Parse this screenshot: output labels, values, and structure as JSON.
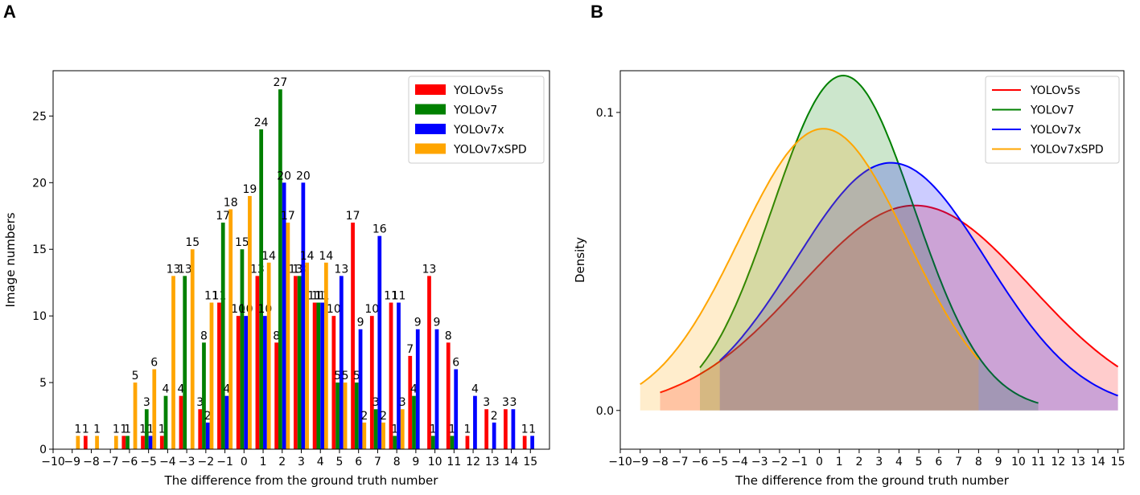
{
  "panel_labels": [
    "A",
    "B"
  ],
  "chart_data": [
    {
      "type": "bar",
      "title": "",
      "xlabel": "The difference from the ground truth number",
      "ylabel": "Image numbers",
      "xlim": [
        -10,
        16
      ],
      "ylim": [
        0,
        28.4
      ],
      "xticks": [
        -10,
        -9,
        -8,
        -7,
        -6,
        -5,
        -4,
        -3,
        -2,
        -1,
        0,
        1,
        2,
        3,
        4,
        5,
        6,
        7,
        8,
        9,
        10,
        11,
        12,
        13,
        14,
        15
      ],
      "yticks": [
        0,
        5,
        10,
        15,
        20,
        25
      ],
      "legend_position": "upper right",
      "series": [
        {
          "name": "YOLOv5s",
          "color": "#ff0000",
          "x": [
            -8,
            -6,
            -5,
            -4,
            -3,
            -2,
            -1,
            0,
            1,
            2,
            3,
            4,
            5,
            6,
            7,
            8,
            9,
            10,
            11,
            12,
            13,
            14,
            15
          ],
          "values": [
            1,
            1,
            1,
            1,
            4,
            3,
            11,
            10,
            13,
            8,
            13,
            11,
            10,
            17,
            10,
            11,
            7,
            13,
            8,
            1,
            3,
            3,
            1
          ]
        },
        {
          "name": "YOLOv7",
          "color": "#008000",
          "x": [
            -6,
            -5,
            -4,
            -3,
            -2,
            -1,
            0,
            1,
            2,
            3,
            4,
            5,
            6,
            7,
            8,
            9,
            10,
            11
          ],
          "values": [
            1,
            3,
            4,
            13,
            8,
            17,
            15,
            24,
            27,
            13,
            11,
            5,
            5,
            3,
            1,
            4,
            1,
            1
          ]
        },
        {
          "name": "YOLOv7x",
          "color": "#0000ff",
          "x": [
            -5,
            -2,
            -1,
            0,
            1,
            2,
            3,
            4,
            5,
            6,
            7,
            8,
            9,
            10,
            11,
            12,
            13,
            14,
            15
          ],
          "values": [
            1,
            2,
            4,
            10,
            10,
            20,
            20,
            11,
            13,
            9,
            16,
            11,
            9,
            9,
            6,
            4,
            2,
            3,
            1
          ]
        },
        {
          "name": "YOLOv7xSPD",
          "color": "#ffa500",
          "x": [
            -9,
            -8,
            -7,
            -6,
            -5,
            -4,
            -3,
            -2,
            -1,
            0,
            1,
            2,
            3,
            4,
            5,
            6,
            7,
            8
          ],
          "values": [
            1,
            1,
            1,
            5,
            6,
            13,
            15,
            11,
            18,
            19,
            14,
            17,
            14,
            14,
            5,
            2,
            2,
            3
          ]
        }
      ]
    },
    {
      "type": "area",
      "title": "",
      "xlabel": "The difference from the ground truth number",
      "ylabel": "Density",
      "xlim": [
        -10,
        15.3
      ],
      "ylim": [
        -0.013,
        0.114
      ],
      "xticks": [
        -10,
        -9,
        -8,
        -7,
        -6,
        -5,
        -4,
        -3,
        -2,
        -1,
        0,
        1,
        2,
        3,
        4,
        5,
        6,
        7,
        8,
        9,
        10,
        11,
        12,
        13,
        14,
        15
      ],
      "yticks": [
        0.0,
        0.1
      ],
      "ytick_labels": [
        "0.0",
        "0.1"
      ],
      "legend_position": "upper right",
      "series": [
        {
          "name": "YOLOv5s",
          "color": "#ff0000",
          "distribution": "normal",
          "mean": 4.8,
          "std": 5.8,
          "x_range": [
            -8,
            15
          ]
        },
        {
          "name": "YOLOv7",
          "color": "#008000",
          "distribution": "normal",
          "mean": 1.2,
          "std": 3.55,
          "x_range": [
            -6,
            11
          ]
        },
        {
          "name": "YOLOv7x",
          "color": "#0000ff",
          "distribution": "normal",
          "mean": 3.6,
          "std": 4.8,
          "x_range": [
            -5,
            15
          ]
        },
        {
          "name": "YOLOv7xSPD",
          "color": "#ffa500",
          "distribution": "normal",
          "mean": 0.2,
          "std": 4.22,
          "x_range": [
            -9,
            8
          ]
        }
      ]
    }
  ]
}
